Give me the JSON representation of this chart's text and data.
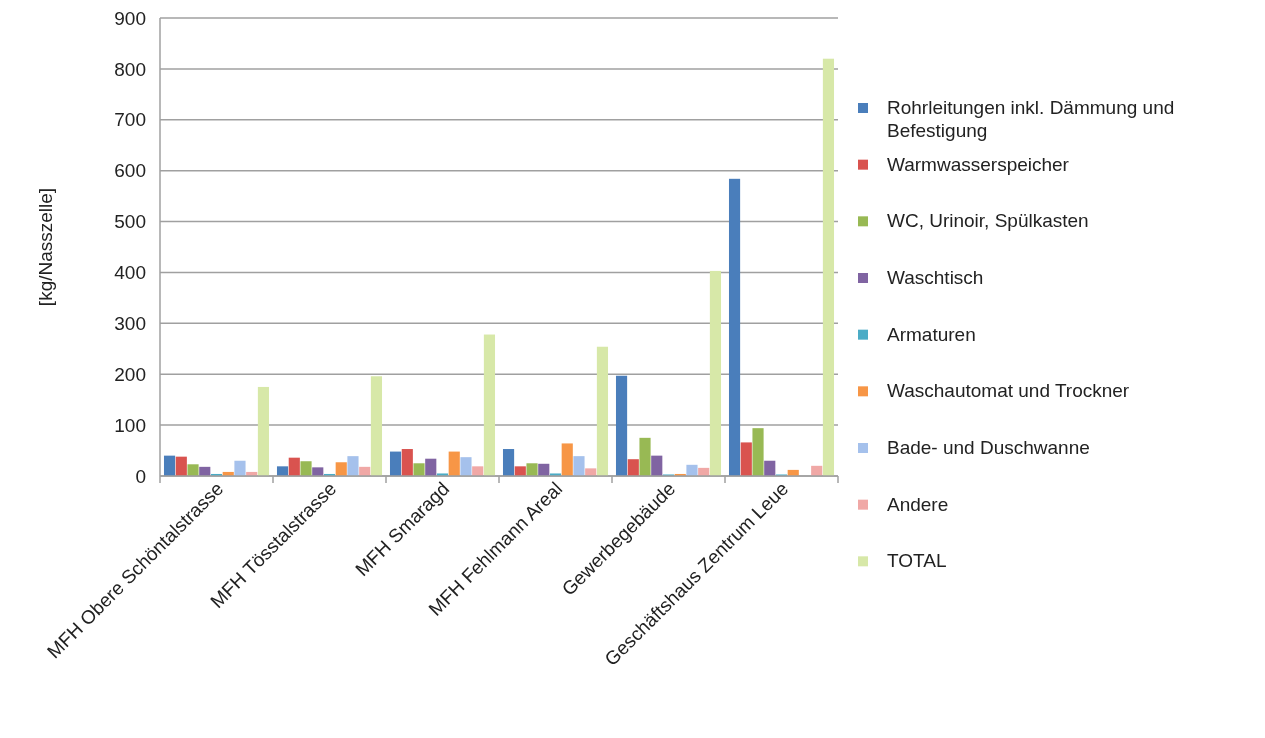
{
  "chart_data": {
    "type": "bar",
    "ylabel": "[kg/Nasszelle]",
    "categories": [
      "MFH Obere Schöntalstrasse",
      "MFH Tösstalstrasse",
      "MFH Smaragd",
      "MFH Fehlmann Areal",
      "Gewerbegebäude",
      "Geschäftshaus Zentrum Leue"
    ],
    "series": [
      {
        "name": "Rohrleitungen inkl. Dämmung und Befestigung",
        "color": "#4a7ebb",
        "values": [
          40,
          19,
          48,
          53,
          197,
          584
        ]
      },
      {
        "name": "Warmwasserspeicher",
        "color": "#d9534f",
        "values": [
          38,
          36,
          53,
          19,
          33,
          66
        ]
      },
      {
        "name": "WC, Urinoir, Spülkasten",
        "color": "#98b954",
        "values": [
          23,
          29,
          25,
          25,
          75,
          94
        ]
      },
      {
        "name": "Waschtisch",
        "color": "#8064a2",
        "values": [
          18,
          17,
          34,
          24,
          40,
          30
        ]
      },
      {
        "name": "Armaturen",
        "color": "#4bacc6",
        "values": [
          4,
          4,
          5,
          5,
          3,
          3
        ]
      },
      {
        "name": "Waschautomat und Trockner",
        "color": "#f79646",
        "values": [
          8,
          27,
          48,
          64,
          4,
          12
        ]
      },
      {
        "name": "Bade- und Duschwanne",
        "color": "#a5c1ec",
        "values": [
          30,
          39,
          37,
          39,
          22,
          0
        ]
      },
      {
        "name": "Andere",
        "color": "#f0a8a6",
        "values": [
          8,
          18,
          19,
          15,
          16,
          20
        ]
      },
      {
        "name": "TOTAL",
        "color": "#d7e8a8",
        "values": [
          175,
          196,
          278,
          254,
          403,
          820
        ]
      }
    ],
    "ylim": [
      0,
      900
    ],
    "yticks": [
      0,
      100,
      200,
      300,
      400,
      500,
      600,
      700,
      800,
      900
    ],
    "grid": "y",
    "legend": "right"
  }
}
